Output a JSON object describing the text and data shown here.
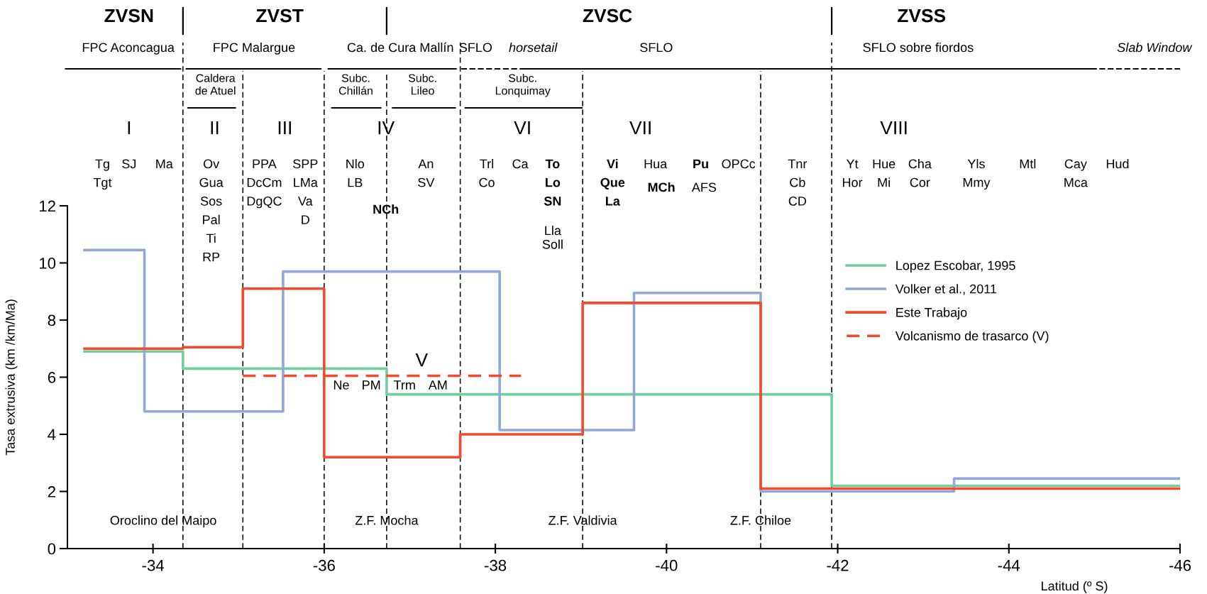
{
  "chart_data": {
    "type": "step",
    "xlabel": "Latitud (º S)",
    "ylabel": "Tasa extrusiva (km /km/Ma)",
    "xlim": [
      -33,
      -46
    ],
    "xticks": [
      -34,
      -36,
      -38,
      -40,
      -42,
      -44,
      -46
    ],
    "ylim": [
      0,
      12
    ],
    "yticks": [
      0,
      2,
      4,
      6,
      8,
      10,
      12
    ],
    "grid": false,
    "legend": "right",
    "marker": "none",
    "series": [
      {
        "name": "Lopez Escobar, 1995",
        "color": "#6fcf9f",
        "x": [
          -33.2,
          -34.35,
          -36.73,
          -41.93,
          -46
        ],
        "values": [
          6.9,
          6.3,
          5.4,
          2.2,
          2.2
        ]
      },
      {
        "name": "Volker et al., 2011",
        "color": "#92a8d8",
        "x": [
          -33.2,
          -33.9,
          -35.52,
          -38.05,
          -39.62,
          -41.1,
          -43.36,
          -46
        ],
        "values": [
          10.45,
          4.8,
          9.7,
          4.15,
          8.95,
          2.0,
          2.45,
          2.45
        ]
      },
      {
        "name": "Este Trabajo",
        "color": "#f24a2a",
        "x": [
          -33.2,
          -34.35,
          -35.05,
          -36.0,
          -37.59,
          -39.02,
          -41.1,
          -46
        ],
        "values": [
          7.0,
          7.05,
          9.1,
          3.2,
          4.0,
          8.6,
          2.1,
          2.1
        ]
      },
      {
        "name": "Volcanismo de trasarco (V)",
        "color": "#f24a2a",
        "line_style": "dashed",
        "x": [
          -35.05,
          -38.3
        ],
        "values": [
          6.05,
          6.05
        ]
      }
    ],
    "ref_lines": [
      {
        "axis": "x",
        "value": -34.35,
        "color": "#000000",
        "line_style": "dashed"
      },
      {
        "axis": "x",
        "value": -35.05,
        "color": "#000000",
        "line_style": "dashed"
      },
      {
        "axis": "x",
        "value": -36.0,
        "color": "#000000",
        "line_style": "dashed"
      },
      {
        "axis": "x",
        "value": -36.73,
        "color": "#000000",
        "line_style": "dashed"
      },
      {
        "axis": "x",
        "value": -37.59,
        "color": "#000000",
        "line_style": "dashed"
      },
      {
        "axis": "x",
        "value": -39.02,
        "color": "#000000",
        "line_style": "dashed"
      },
      {
        "axis": "x",
        "value": -41.1,
        "color": "#000000",
        "line_style": "dashed"
      },
      {
        "axis": "x",
        "value": -41.93,
        "color": "#000000",
        "line_style": "dashed"
      }
    ],
    "annotations": [
      "ZVSN",
      "ZVST",
      "ZVSC",
      "ZVSS",
      "FPC Aconcagua",
      "FPC Malargue",
      "Ca. de Cura Mallín",
      "SFLO",
      "horsetail",
      "SFLO",
      "SFLO sobre fiordos",
      "Slab Window",
      "Caldera\nde Atuel",
      "Subc.\nChillán",
      "Subc.\nLileo",
      "Subc.\nLonquimay",
      "I",
      "II",
      "III",
      "IV",
      "VI",
      "VII",
      "VIII",
      "Tg\nTgt",
      "SJ",
      "Ma",
      "Ov\nGua\nSos\nPal\nTi\nRP",
      "PPA\nDcCm\nDgQC",
      "SPP\nLMa\nVa\nD",
      "Nlo\nLB",
      "An\nSV",
      "NCh",
      "Trl\nCo",
      "Ca",
      "To\nLo\nSN",
      "Lla\nSoll",
      "Vi\nQue\nLa",
      "Hua",
      "MCh",
      "Pu",
      "AFS",
      "OPCc",
      "Tnr\nCb\nCD",
      "Yt\nHor",
      "Hue\nMi",
      "Cha\nCor",
      "Yls\nMmy",
      "Mtl",
      "Cay\nMca",
      "Hud",
      "V",
      "Ne",
      "PM",
      "Trm",
      "AM",
      "Oroclino del Maipo",
      {
        "text": "Z.F. Mocha",
        "x": -36.73,
        "y": 0.95
      },
      {
        "text": "Z.F. Valdivia",
        "x": -39.02,
        "y": 0.95
      },
      {
        "text": "Z.F. Chiloe",
        "x": -41.1,
        "y": 0.95
      }
    ]
  }
}
